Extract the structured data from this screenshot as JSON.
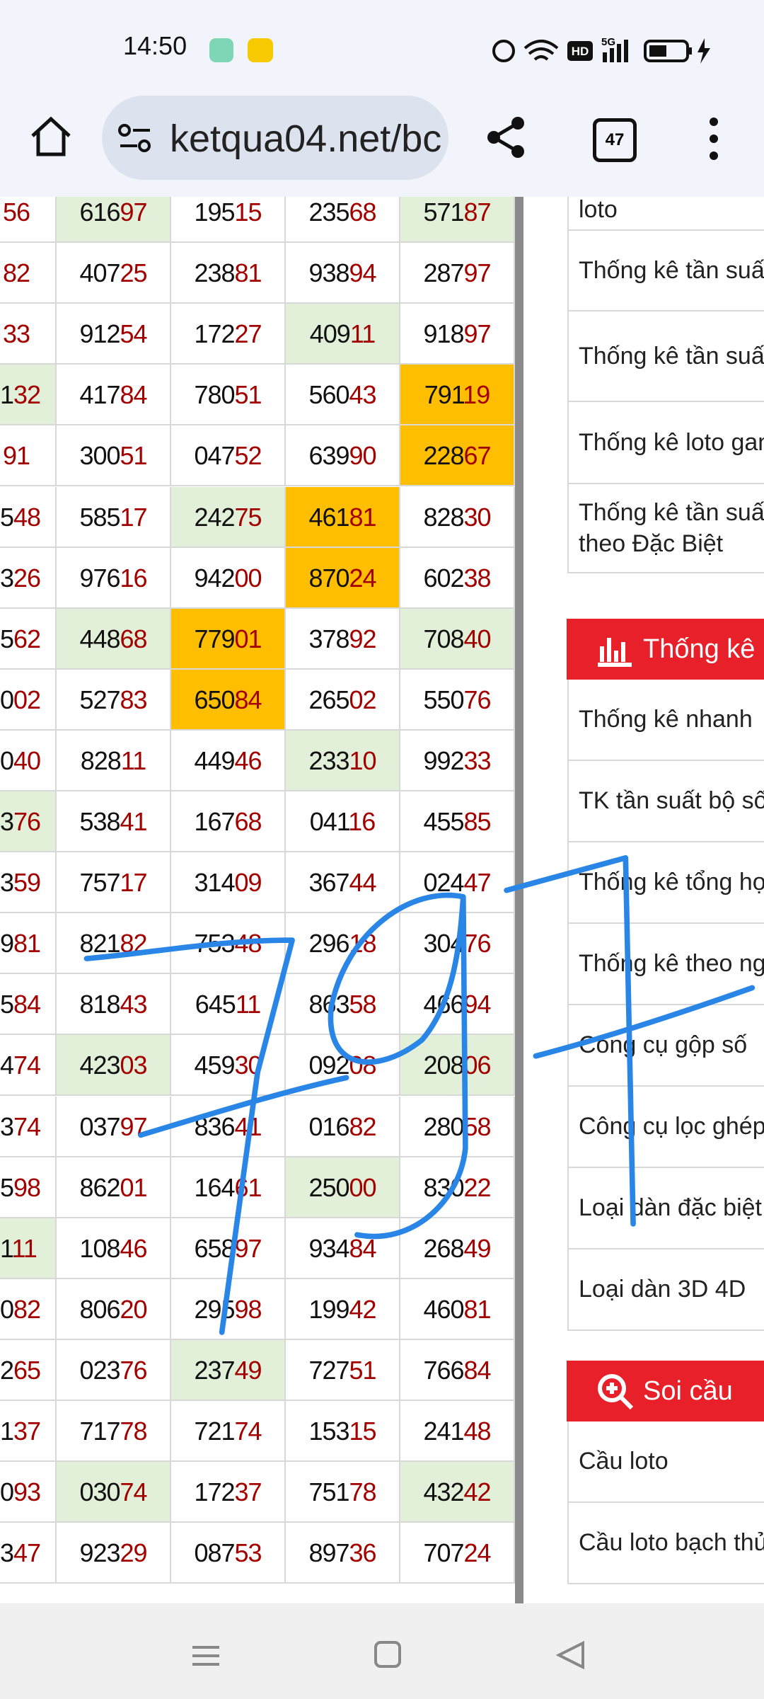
{
  "status_bar": {
    "time": "14:50",
    "hd": "HD",
    "network": "5G"
  },
  "browser": {
    "url": "ketqua04.net/bc",
    "tab_count": "47"
  },
  "table": {
    "rows": [
      [
        "56",
        "61697",
        "19515",
        "23568",
        "57187"
      ],
      [
        "82",
        "40725",
        "23881",
        "93894",
        "28797"
      ],
      [
        "33",
        "91254",
        "17227",
        "40911",
        "91897"
      ],
      [
        "132",
        "41784",
        "78051",
        "56043",
        "79119"
      ],
      [
        "91",
        "30051",
        "04752",
        "63990",
        "22867"
      ],
      [
        "548",
        "58517",
        "24275",
        "46181",
        "82830"
      ],
      [
        "326",
        "97616",
        "94200",
        "87024",
        "60238"
      ],
      [
        "562",
        "44868",
        "77901",
        "37892",
        "70840"
      ],
      [
        "002",
        "52783",
        "65084",
        "26502",
        "55076"
      ],
      [
        "040",
        "82811",
        "44946",
        "23310",
        "99233"
      ],
      [
        "376",
        "53841",
        "16768",
        "04116",
        "45585"
      ],
      [
        "359",
        "75717",
        "31409",
        "36744",
        "02447"
      ],
      [
        "981",
        "82182",
        "75348",
        "29618",
        "30476"
      ],
      [
        "584",
        "81843",
        "64511",
        "86358",
        "46694"
      ],
      [
        "474",
        "42303",
        "45930",
        "09208",
        "20806"
      ],
      [
        "374",
        "03797",
        "83641",
        "01682",
        "28058"
      ],
      [
        "598",
        "86201",
        "16461",
        "25000",
        "83022"
      ],
      [
        "111",
        "10846",
        "65897",
        "93484",
        "26849"
      ],
      [
        "082",
        "80620",
        "29598",
        "19942",
        "46081"
      ],
      [
        "265",
        "02376",
        "23749",
        "72751",
        "76684"
      ],
      [
        "137",
        "71778",
        "72174",
        "15315",
        "24148"
      ],
      [
        "093",
        "03074",
        "17237",
        "75178",
        "43242"
      ],
      [
        "347",
        "92329",
        "08753",
        "89736",
        "70724"
      ]
    ]
  },
  "sidebar": {
    "top_items": [
      "loto",
      "Thống kê tần suất",
      "Thống kê tần suất",
      "Thống kê loto gan",
      "Thống kê tần suất theo Đặc Biệt"
    ],
    "sections": [
      {
        "title": "Thống kê",
        "items": [
          "Thống kê nhanh",
          "TK tần suất bộ số",
          "Thống kê tổng hợp",
          "Thống kê theo ngày",
          "Công cụ gộp số",
          "Công cụ lọc ghép",
          "Loại dàn đặc biệt",
          "Loại dàn 3D 4D"
        ]
      },
      {
        "title": "Soi cầu",
        "items": [
          "Cầu loto",
          "Cầu loto bạch thủ"
        ]
      }
    ]
  }
}
